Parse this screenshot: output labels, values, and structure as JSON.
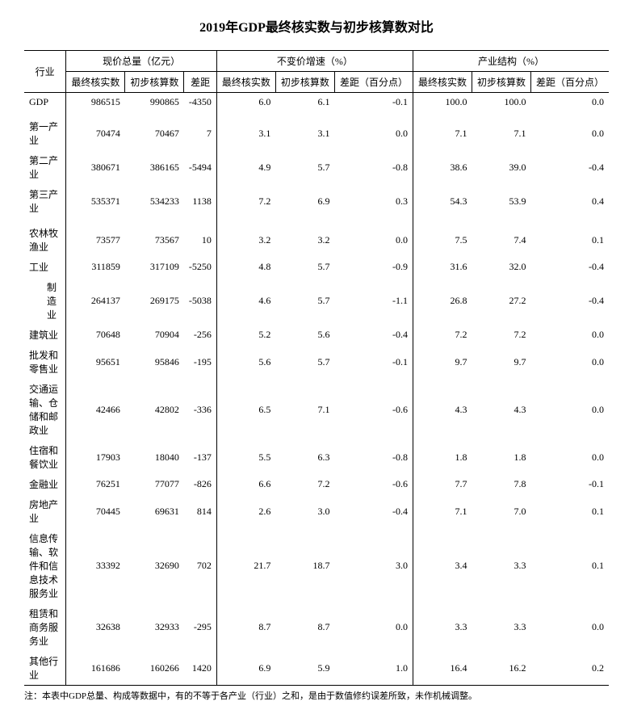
{
  "title": "2019年GDP最终核实数与初步核算数对比",
  "headers": {
    "industry": "行业",
    "group1": "现价总量（亿元）",
    "group2": "不变价增速（%）",
    "group3": "产业结构（%）",
    "final": "最终核实数",
    "prelim": "初步核算数",
    "diff": "差距",
    "diff_pp": "差距（百分点）"
  },
  "rows": [
    {
      "label": "GDP",
      "indent": 0,
      "v": [
        "986515",
        "990865",
        "-4350",
        "6.0",
        "6.1",
        "-0.1",
        "100.0",
        "100.0",
        "0.0"
      ]
    },
    {
      "spacer": true
    },
    {
      "label": "第一产业",
      "indent": 0,
      "v": [
        "70474",
        "70467",
        "7",
        "3.1",
        "3.1",
        "0.0",
        "7.1",
        "7.1",
        "0.0"
      ]
    },
    {
      "label": "第二产业",
      "indent": 0,
      "v": [
        "380671",
        "386165",
        "-5494",
        "4.9",
        "5.7",
        "-0.8",
        "38.6",
        "39.0",
        "-0.4"
      ]
    },
    {
      "label": "第三产业",
      "indent": 0,
      "v": [
        "535371",
        "534233",
        "1138",
        "7.2",
        "6.9",
        "0.3",
        "54.3",
        "53.9",
        "0.4"
      ]
    },
    {
      "spacer": true
    },
    {
      "label": "农林牧渔业",
      "indent": 0,
      "v": [
        "73577",
        "73567",
        "10",
        "3.2",
        "3.2",
        "0.0",
        "7.5",
        "7.4",
        "0.1"
      ]
    },
    {
      "label": "工业",
      "indent": 0,
      "v": [
        "311859",
        "317109",
        "-5250",
        "4.8",
        "5.7",
        "-0.9",
        "31.6",
        "32.0",
        "-0.4"
      ]
    },
    {
      "label": "制造业",
      "indent": 1,
      "v": [
        "264137",
        "269175",
        "-5038",
        "4.6",
        "5.7",
        "-1.1",
        "26.8",
        "27.2",
        "-0.4"
      ]
    },
    {
      "label": "建筑业",
      "indent": 0,
      "v": [
        "70648",
        "70904",
        "-256",
        "5.2",
        "5.6",
        "-0.4",
        "7.2",
        "7.2",
        "0.0"
      ]
    },
    {
      "label": "批发和零售业",
      "indent": 0,
      "v": [
        "95651",
        "95846",
        "-195",
        "5.6",
        "5.7",
        "-0.1",
        "9.7",
        "9.7",
        "0.0"
      ]
    },
    {
      "label": "交通运输、仓储和邮政业",
      "indent": 0,
      "v": [
        "42466",
        "42802",
        "-336",
        "6.5",
        "7.1",
        "-0.6",
        "4.3",
        "4.3",
        "0.0"
      ]
    },
    {
      "label": "住宿和餐饮业",
      "indent": 0,
      "v": [
        "17903",
        "18040",
        "-137",
        "5.5",
        "6.3",
        "-0.8",
        "1.8",
        "1.8",
        "0.0"
      ]
    },
    {
      "label": "金融业",
      "indent": 0,
      "v": [
        "76251",
        "77077",
        "-826",
        "6.6",
        "7.2",
        "-0.6",
        "7.7",
        "7.8",
        "-0.1"
      ]
    },
    {
      "label": "房地产业",
      "indent": 0,
      "v": [
        "70445",
        "69631",
        "814",
        "2.6",
        "3.0",
        "-0.4",
        "7.1",
        "7.0",
        "0.1"
      ]
    },
    {
      "label": "信息传输、软件和信息技术服务业",
      "indent": 0,
      "v": [
        "33392",
        "32690",
        "702",
        "21.7",
        "18.7",
        "3.0",
        "3.4",
        "3.3",
        "0.1"
      ]
    },
    {
      "label": "租赁和商务服务业",
      "indent": 0,
      "v": [
        "32638",
        "32933",
        "-295",
        "8.7",
        "8.7",
        "0.0",
        "3.3",
        "3.3",
        "0.0"
      ]
    },
    {
      "label": "其他行业",
      "indent": 0,
      "v": [
        "161686",
        "160266",
        "1420",
        "6.9",
        "5.9",
        "1.0",
        "16.4",
        "16.2",
        "0.2"
      ]
    }
  ],
  "footnote": "注：本表中GDP总量、构成等数据中，有的不等于各产业（行业）之和，是由于数值修约误差所致，未作机械调整。",
  "colors": {
    "text": "#000000",
    "bg": "#ffffff",
    "border": "#000000"
  }
}
